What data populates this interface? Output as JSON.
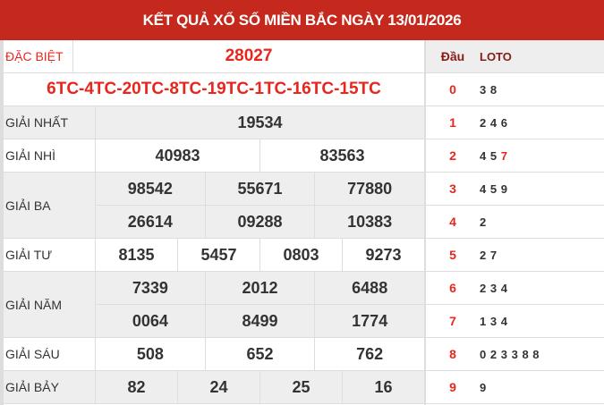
{
  "title": "KẾT QUẢ XỔ SỐ MIỀN BẮC NGÀY 13/01/2026",
  "special": {
    "label": "ĐẶC BIỆT",
    "value": "28027",
    "codes": "6TC-4TC-20TC-8TC-19TC-1TC-16TC-15TC"
  },
  "prizes": [
    {
      "label": "GIẢI NHẤT",
      "rows": [
        [
          "19534"
        ]
      ]
    },
    {
      "label": "GIẢI NHÌ",
      "rows": [
        [
          "40983",
          "83563"
        ]
      ]
    },
    {
      "label": "GIẢI BA",
      "rows": [
        [
          "98542",
          "55671",
          "77880"
        ],
        [
          "26614",
          "09288",
          "10383"
        ]
      ]
    },
    {
      "label": "GIẢI TƯ",
      "rows": [
        [
          "8135",
          "5457",
          "0803",
          "9273"
        ]
      ]
    },
    {
      "label": "GIẢI NĂM",
      "rows": [
        [
          "7339",
          "2012",
          "6488"
        ],
        [
          "0064",
          "8499",
          "1774"
        ]
      ]
    },
    {
      "label": "GIẢI SÁU",
      "rows": [
        [
          "508",
          "652",
          "762"
        ]
      ]
    },
    {
      "label": "GIẢI BẢY",
      "rows": [
        [
          "82",
          "24",
          "25",
          "16"
        ]
      ]
    }
  ],
  "loto": {
    "head_label": "Đầu",
    "loto_label": "LOTO",
    "rows": [
      {
        "dau": "0",
        "tails": [
          "3",
          "8"
        ]
      },
      {
        "dau": "1",
        "tails": [
          "2",
          "4",
          "6"
        ]
      },
      {
        "dau": "2",
        "tails": [
          "4",
          "5",
          "7"
        ],
        "highlight": "7"
      },
      {
        "dau": "3",
        "tails": [
          "4",
          "5",
          "9"
        ]
      },
      {
        "dau": "4",
        "tails": [
          "2"
        ]
      },
      {
        "dau": "5",
        "tails": [
          "2",
          "7"
        ]
      },
      {
        "dau": "6",
        "tails": [
          "2",
          "3",
          "4"
        ]
      },
      {
        "dau": "7",
        "tails": [
          "1",
          "3",
          "4"
        ]
      },
      {
        "dau": "8",
        "tails": [
          "0",
          "2",
          "3",
          "3",
          "8",
          "8"
        ]
      },
      {
        "dau": "9",
        "tails": [
          "9"
        ]
      }
    ]
  },
  "colors": {
    "header": "#c5281c",
    "accent": "#e8261d"
  }
}
